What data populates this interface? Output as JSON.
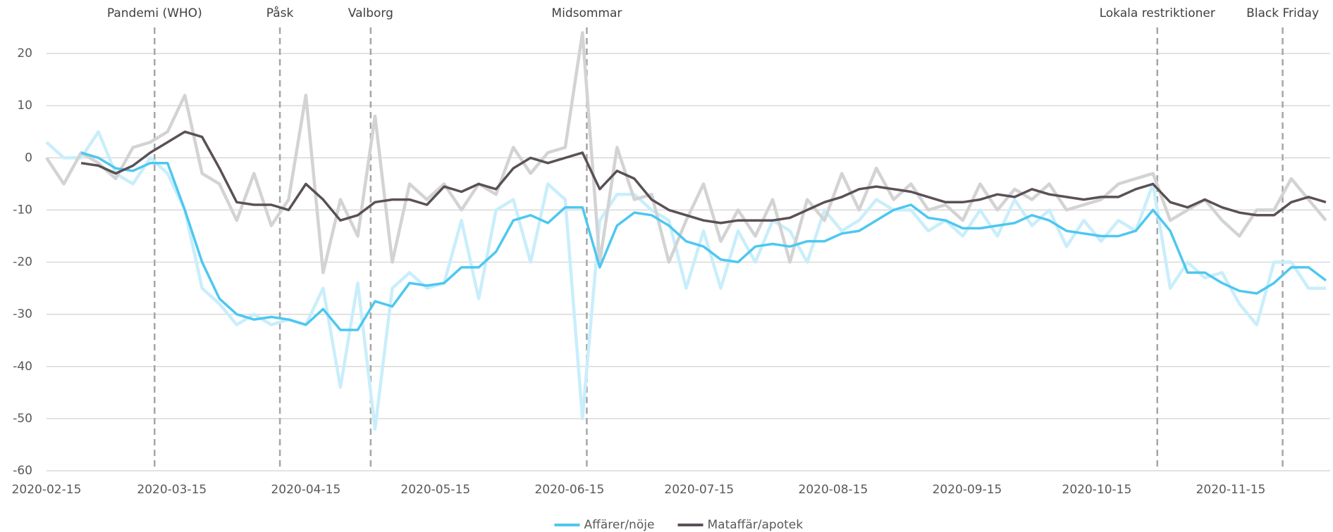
{
  "chart_data": {
    "type": "line",
    "x": [
      "2020-02-15",
      "2020-02-19",
      "2020-02-23",
      "2020-02-27",
      "2020-03-02",
      "2020-03-06",
      "2020-03-10",
      "2020-03-14",
      "2020-03-18",
      "2020-03-22",
      "2020-03-26",
      "2020-03-30",
      "2020-04-03",
      "2020-04-07",
      "2020-04-11",
      "2020-04-15",
      "2020-04-19",
      "2020-04-23",
      "2020-04-27",
      "2020-05-01",
      "2020-05-05",
      "2020-05-09",
      "2020-05-13",
      "2020-05-17",
      "2020-05-21",
      "2020-05-25",
      "2020-05-29",
      "2020-06-02",
      "2020-06-06",
      "2020-06-10",
      "2020-06-14",
      "2020-06-18",
      "2020-06-22",
      "2020-06-26",
      "2020-06-30",
      "2020-07-04",
      "2020-07-08",
      "2020-07-12",
      "2020-07-16",
      "2020-07-20",
      "2020-07-24",
      "2020-07-28",
      "2020-08-01",
      "2020-08-05",
      "2020-08-09",
      "2020-08-13",
      "2020-08-17",
      "2020-08-21",
      "2020-08-25",
      "2020-08-29",
      "2020-09-02",
      "2020-09-06",
      "2020-09-10",
      "2020-09-14",
      "2020-09-18",
      "2020-09-22",
      "2020-09-26",
      "2020-09-30",
      "2020-10-04",
      "2020-10-08",
      "2020-10-12",
      "2020-10-16",
      "2020-10-20",
      "2020-10-24",
      "2020-10-28",
      "2020-11-01",
      "2020-11-05",
      "2020-11-09",
      "2020-11-13",
      "2020-11-17",
      "2020-11-21",
      "2020-11-25",
      "2020-11-29",
      "2020-12-03",
      "2020-12-07"
    ],
    "series": [
      {
        "color": "#c9eefb",
        "values": [
          3,
          0,
          0,
          5,
          -3,
          -5,
          0,
          -3,
          -10,
          -25,
          -28,
          -32,
          -30,
          -32,
          -31,
          -32,
          -25,
          -44,
          -24,
          -52,
          -25,
          -22,
          -25,
          -24,
          -12,
          -27,
          -10,
          -8,
          -20,
          -5,
          -8,
          -50,
          -12,
          -7,
          -7,
          -10,
          -12,
          -25,
          -14,
          -25,
          -14,
          -20,
          -12,
          -14,
          -20,
          -10,
          -14,
          -12,
          -8,
          -10,
          -10,
          -14,
          -12,
          -15,
          -10,
          -15,
          -8,
          -13,
          -10,
          -17,
          -12,
          -16,
          -12,
          -14,
          -5,
          -25,
          -20,
          -23,
          -22,
          -28,
          -32,
          -20,
          -20,
          -25,
          -25
        ]
      },
      {
        "color": "#d3d3d3",
        "values": [
          0,
          -5,
          1,
          -1,
          -4,
          2,
          3,
          5,
          12,
          -3,
          -5,
          -12,
          -3,
          -13,
          -8,
          12,
          -22,
          -8,
          -15,
          8,
          -20,
          -5,
          -8,
          -5,
          -10,
          -5,
          -7,
          2,
          -3,
          1,
          2,
          24,
          -20,
          2,
          -8,
          -7,
          -20,
          -12,
          -5,
          -16,
          -10,
          -15,
          -8,
          -20,
          -8,
          -12,
          -3,
          -10,
          -2,
          -8,
          -5,
          -10,
          -9,
          -12,
          -5,
          -10,
          -6,
          -8,
          -5,
          -10,
          -9,
          -8,
          -5,
          -4,
          -3,
          -12,
          -10,
          -8,
          -12,
          -15,
          -10,
          -10,
          -4,
          -8,
          -12
        ]
      },
      {
        "name": "Affärer/nöje",
        "color": "#4dc7f0",
        "values": [
          null,
          null,
          1,
          0,
          -2,
          -2.5,
          -1,
          -1,
          -10,
          -20,
          -27,
          -30,
          -31,
          -30.5,
          -31,
          -32,
          -29,
          -33,
          -33,
          -27.5,
          -28.5,
          -24,
          -24.5,
          -24,
          -21,
          -21,
          -18,
          -12,
          -11,
          -12.5,
          -9.5,
          -9.5,
          -21,
          -13,
          -10.5,
          -11,
          -13,
          -16,
          -17,
          -19.5,
          -20,
          -17,
          -16.5,
          -17,
          -16,
          -16,
          -14.5,
          -14,
          -12,
          -10,
          -9,
          -11.5,
          -12,
          -13.5,
          -13.5,
          -13,
          -12.5,
          -11,
          -12,
          -14,
          -14.5,
          -15,
          -15,
          -14,
          -10,
          -14,
          -22,
          -22,
          -24,
          -25.5,
          -26,
          -24,
          -21,
          -21,
          -23.5
        ]
      },
      {
        "name": "Mataffär/apotek",
        "color": "#5a5058",
        "values": [
          null,
          null,
          -1,
          -1.5,
          -3,
          -1.5,
          1,
          3,
          5,
          4,
          -2,
          -8.5,
          -9,
          -9,
          -10,
          -5,
          -8,
          -12,
          -11,
          -8.5,
          -8,
          -8,
          -9,
          -5.5,
          -6.5,
          -5,
          -6,
          -2,
          0,
          -1,
          0,
          1,
          -6,
          -2.5,
          -4,
          -8,
          -10,
          -11,
          -12,
          -12.5,
          -12,
          -12,
          -12,
          -11.5,
          -10,
          -8.5,
          -7.5,
          -6,
          -5.5,
          -6,
          -6.5,
          -7.5,
          -8.5,
          -8.5,
          -8,
          -7,
          -7.5,
          -6,
          -7,
          -7.5,
          -8,
          -7.5,
          -7.5,
          -6,
          -5,
          -8.5,
          -9.5,
          -8,
          -9.5,
          -10.5,
          -11,
          -11,
          -8.5,
          -7.5,
          -8.5
        ]
      }
    ],
    "xlim": [
      "2020-02-15",
      "2020-12-08"
    ],
    "xticks": [
      "2020-02-15",
      "2020-03-15",
      "2020-04-15",
      "2020-05-15",
      "2020-06-15",
      "2020-07-15",
      "2020-08-15",
      "2020-09-15",
      "2020-10-15",
      "2020-11-15"
    ],
    "ylim": [
      -60,
      25
    ],
    "yticks": [
      -60,
      -50,
      -40,
      -30,
      -20,
      -10,
      0,
      10,
      20
    ],
    "grid": true,
    "legend": "bottom",
    "annotations": [
      {
        "label": "Pandemi (WHO)",
        "x": "2020-03-11"
      },
      {
        "label": "Påsk",
        "x": "2020-04-09"
      },
      {
        "label": "Valborg",
        "x": "2020-04-30"
      },
      {
        "label": "Midsommar",
        "x": "2020-06-19"
      },
      {
        "label": "Lokala restriktioner",
        "x": "2020-10-29"
      },
      {
        "label": "Black Friday",
        "x": "2020-11-27"
      }
    ]
  }
}
